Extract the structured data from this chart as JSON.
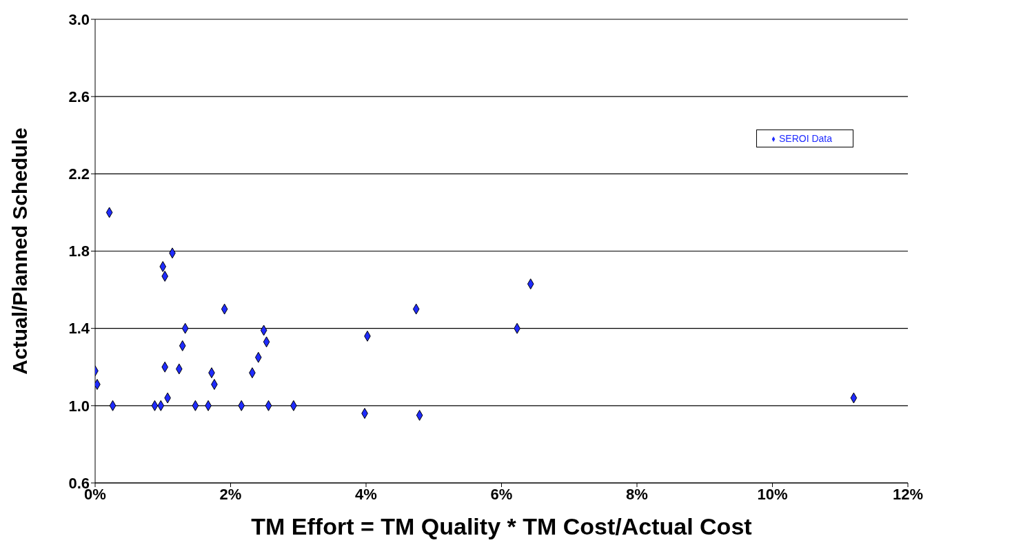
{
  "chart_data": {
    "type": "scatter",
    "xlabel": "TM Effort = TM Quality * TM Cost/Actual Cost",
    "ylabel": "Actual/Planned Schedule",
    "xlim": [
      0,
      12
    ],
    "ylim": [
      0.6,
      3.0
    ],
    "xticks": [
      {
        "value": 0,
        "label": "0%"
      },
      {
        "value": 2,
        "label": "2%"
      },
      {
        "value": 4,
        "label": "4%"
      },
      {
        "value": 6,
        "label": "6%"
      },
      {
        "value": 8,
        "label": "8%"
      },
      {
        "value": 10,
        "label": "10%"
      },
      {
        "value": 12,
        "label": "12%"
      }
    ],
    "yticks": [
      0.6,
      {
        "value": 1,
        "label": "1.0"
      },
      1.4,
      1.8,
      2.2,
      2.6,
      {
        "value": 3,
        "label": "3.0"
      }
    ],
    "grid": "y",
    "legend": "top right",
    "marker": "diamond",
    "series": [
      {
        "name": "SEROI Data",
        "color": "#1f2bff",
        "x": [
          0,
          0.03,
          0.21,
          0.26,
          0.88,
          0.97,
          1.0,
          1.03,
          1.03,
          1.07,
          1.14,
          1.24,
          1.29,
          1.33,
          1.48,
          1.67,
          1.72,
          1.76,
          1.91,
          2.16,
          2.32,
          2.41,
          2.49,
          2.53,
          2.56,
          2.93,
          3.98,
          4.02,
          4.74,
          4.79,
          6.23,
          6.43,
          11.2
        ],
        "values": [
          1.18,
          1.11,
          2.0,
          1.0,
          1.0,
          1.0,
          1.72,
          1.67,
          1.2,
          1.04,
          1.79,
          1.19,
          1.31,
          1.4,
          1.0,
          1.0,
          1.17,
          1.11,
          1.5,
          1.0,
          1.17,
          1.25,
          1.39,
          1.33,
          1.0,
          1.0,
          0.96,
          1.36,
          1.5,
          0.95,
          1.4,
          1.63,
          1.04
        ]
      }
    ]
  }
}
